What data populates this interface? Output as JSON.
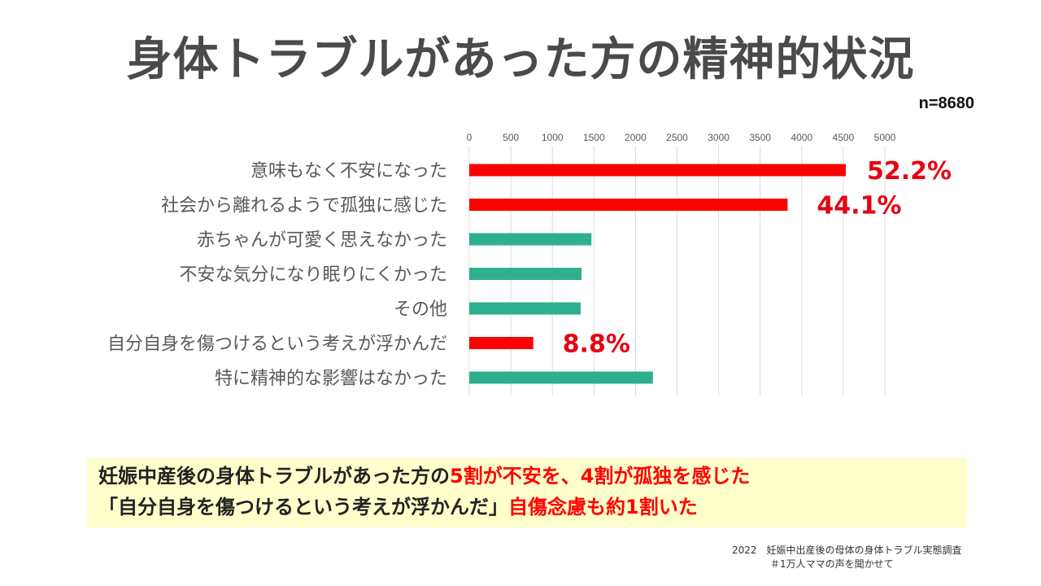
{
  "title": "身体トラブルがあった方の精神的状況",
  "n_label": "n=8680",
  "chart_data": {
    "type": "bar",
    "orientation": "horizontal",
    "title": "身体トラブルがあった方の精神的状況",
    "categories": [
      "意味もなく不安になった",
      "社会から離れるようで孤独に感じた",
      "赤ちゃんが可愛く思えなかった",
      "不安な気分になり眠りにくかった",
      "その他",
      "自分自身を傷つけるという考えが浮かんだ",
      "特に精神的な影響はなかった"
    ],
    "values": [
      4530,
      3830,
      1470,
      1350,
      1340,
      770,
      2210
    ],
    "bar_colors": [
      "#ff0000",
      "#ff0000",
      "#2eb08f",
      "#2eb08f",
      "#2eb08f",
      "#ff0000",
      "#2eb08f"
    ],
    "data_labels": [
      "52.2%",
      "44.1%",
      "",
      "",
      "",
      "8.8%",
      ""
    ],
    "xlim": [
      0,
      5000
    ],
    "x_ticks": [
      0,
      500,
      1000,
      1500,
      2000,
      2500,
      3000,
      3500,
      4000,
      4500,
      5000
    ],
    "axis_position": "top",
    "grid": true,
    "legend": "none"
  },
  "summary": {
    "line1_a": "妊娠中産後の身体トラブルがあった方の",
    "line1_b": "5割が不安を、4割が孤独を感じた",
    "line2_a": "「自分自身を傷つけるという考えが浮かんだ」",
    "line2_b": "自傷念慮も約1割いた"
  },
  "source": {
    "line1": "2022　妊娠中出産後の母体の身体トラブル実態調査",
    "line2": "＃1万人ママの声を聞かせて"
  },
  "colors": {
    "accent_red": "#ff0000",
    "accent_green": "#2eb08f",
    "summary_bg": "#ffffcc",
    "title": "#4a4a4a"
  }
}
